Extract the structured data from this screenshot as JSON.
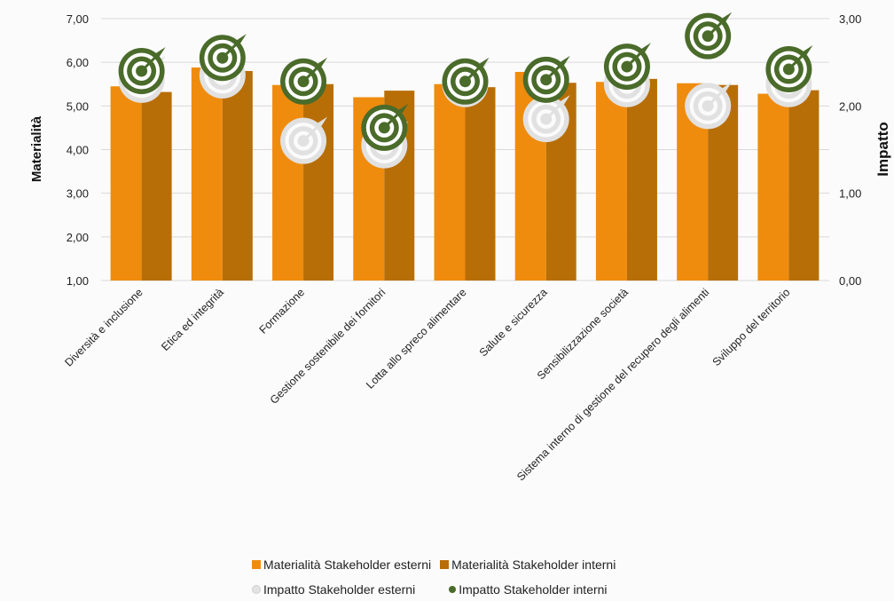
{
  "chart_data": {
    "type": "bar",
    "categories": [
      "Diversità e inclusione",
      "Etica ed integrità",
      "Formazione",
      "Gestione sostenibile dei fornitori",
      "Lotta allo spreco alimentare",
      "Salute e sicurezza",
      "Sensibilizzazione società",
      "Sistema interno di gestione del recupero degli alimenti",
      "Sviluppo del territorio"
    ],
    "series": [
      {
        "name": "Materialità Stakeholder esterni",
        "axis": "left",
        "kind": "bar",
        "color": "#ef8c0e",
        "values": [
          5.45,
          5.88,
          5.48,
          5.2,
          5.5,
          5.78,
          5.55,
          5.52,
          5.28
        ]
      },
      {
        "name": "Materialità Stakeholder interni",
        "axis": "left",
        "kind": "bar",
        "color": "#b86e07",
        "values": [
          5.32,
          5.8,
          5.5,
          5.35,
          5.43,
          5.53,
          5.62,
          5.48,
          5.36
        ]
      },
      {
        "name": "Impatto Stakeholder esterni",
        "axis": "right",
        "kind": "marker",
        "color": "#e3e3e3",
        "values": [
          2.3,
          2.35,
          1.6,
          1.55,
          2.25,
          1.85,
          2.25,
          2.0,
          2.25
        ]
      },
      {
        "name": "Impatto Stakeholder interni",
        "axis": "right",
        "kind": "marker",
        "color": "#4a6b2a",
        "values": [
          2.4,
          2.55,
          2.28,
          1.75,
          2.28,
          2.3,
          2.45,
          2.8,
          2.42
        ]
      }
    ],
    "ylabel": "Materialità",
    "y2label": "Impatto",
    "ylim": [
      1,
      7
    ],
    "y2lim": [
      0,
      3
    ],
    "yticks": [
      "1,00",
      "2,00",
      "3,00",
      "4,00",
      "5,00",
      "6,00",
      "7,00"
    ],
    "y2ticks": [
      "0,00",
      "1,00",
      "2,00",
      "3,00"
    ],
    "grid": true,
    "legend_position": "bottom"
  }
}
